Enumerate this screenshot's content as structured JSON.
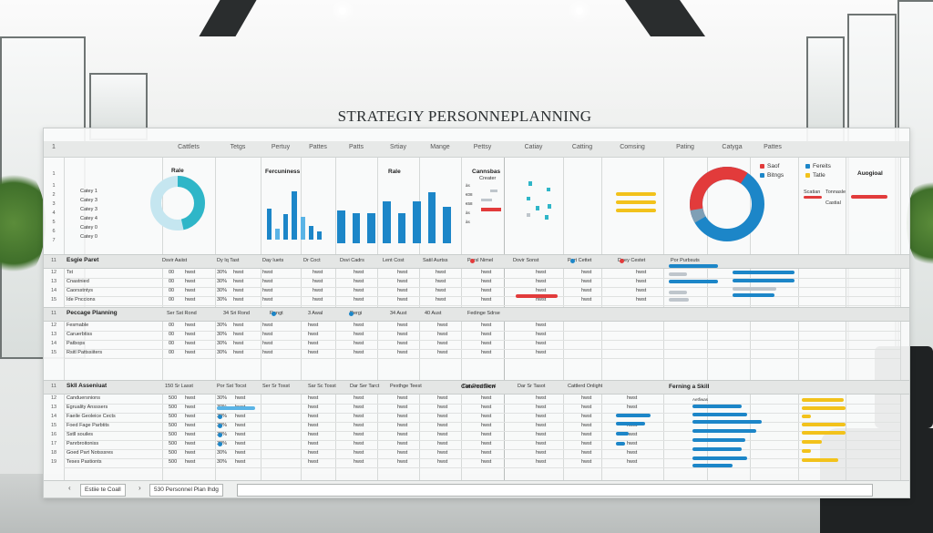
{
  "page_title": "STRATEGIY PERSONNEPLANNING",
  "colors": {
    "blue": "#1c86c8",
    "light_blue": "#5ab4e6",
    "red": "#e23b3b",
    "yellow": "#f2c21b",
    "teal": "#2fb6c8",
    "gray": "#bfc6cc"
  },
  "header_columns": [
    "Cattlets",
    "Tetgs",
    "Pertuy",
    "Pattes",
    "Patts",
    "Srtiay",
    "Mange",
    "Pettsy",
    "Catiay",
    "Catting",
    "Comsing",
    "Pating",
    "Catyga",
    "Pattes"
  ],
  "top_section": {
    "donut_label": "Rale",
    "row_labels": [
      "Catey 1",
      "Catey 3",
      "Catey 3",
      "Catey 4",
      "Catey 0",
      "Catey 0"
    ],
    "bars_title": "Fercuniness",
    "bars_label": "Rale",
    "bar_values": [
      0.55,
      0.2,
      0.45,
      0.85,
      0.4,
      0.25,
      0.15
    ],
    "bar_values_2": [
      0.55,
      0.5,
      0.5,
      0.7,
      0.5,
      0.7,
      0.85,
      0.6
    ],
    "mini_title": "Cannsbas",
    "mini_sub": "Creater",
    "mini_ticks": [
      "às",
      "€08",
      "€68",
      "às",
      "às"
    ],
    "legend": [
      {
        "label": "Saof",
        "color": "#e23b3b"
      },
      {
        "label": "Bitngs",
        "color": "#1c86c8"
      }
    ],
    "legend2": [
      {
        "label": "Fereits",
        "color": "#1c86c8"
      },
      {
        "label": "Tatle",
        "color": "#f2c21b"
      }
    ],
    "right_label": "Auogioal",
    "small_a": "Scatian",
    "small_b": "Tonnasle",
    "small_c": "Castial"
  },
  "section1": {
    "title": "Esgie Paret",
    "cols": [
      "Dsvir Aaiist",
      "Dy Iq Tast",
      "Day Iuets",
      "Dr Coct",
      "Dsvi Cadrs",
      "Lent Cost",
      "Satil Aurtss",
      "Persl Nimel",
      "Dovir Sonst",
      "Pert Cettet",
      "Deey Cestet",
      "Por Purbsuts"
    ],
    "rows": [
      "Tst",
      "Cnastnied",
      "Caorsstntys",
      "Ide Pnccions"
    ],
    "v1": "00",
    "v2": "hwst",
    "v3": "30%"
  },
  "section2": {
    "title": "Peccage Planning",
    "cols": [
      "Ser Sst Rond",
      "34 Sri Rond",
      "Rangt",
      "3 Awal",
      "Dergi",
      "34 Aust",
      "40 Aust",
      "Fedinge Sdrse"
    ],
    "rows": [
      "Fesmable",
      "Caruerbtiss",
      "Patbops",
      "Rsitl Pattssiiters"
    ],
    "v1": "00",
    "v2": "hwst",
    "v3": "30%"
  },
  "section3": {
    "title": "Skll Asseniuat",
    "right_title": "Catercdtiicn",
    "right_title2": "Ferning a Skill",
    "cols": [
      "150 Sr Lasst",
      "Por Sst Tocst",
      "Ser Sr Tosst",
      "Sar Sc Tosst",
      "Dar Ser Tarct",
      "Pexthge Teest",
      "Dar Dsrc Taest",
      "Dar Sr Tasot",
      "Cattlerd Onlight"
    ],
    "rows": [
      "Canduersnions",
      "Egruality Ansssers",
      "Faeile Geoleice Cects",
      "Foed Fage Parbtits",
      "Sstll souiles",
      "Panrbroitoniss",
      "Goed Part Notsssres",
      "Teses Pastionts"
    ],
    "v1": "500",
    "v2": "hwst",
    "v3": "30%",
    "side_label": "Aetfiwas"
  },
  "footer": {
    "tab1": "Estiie te Coall",
    "tab2": "530 Personnel Plan lhdg"
  }
}
